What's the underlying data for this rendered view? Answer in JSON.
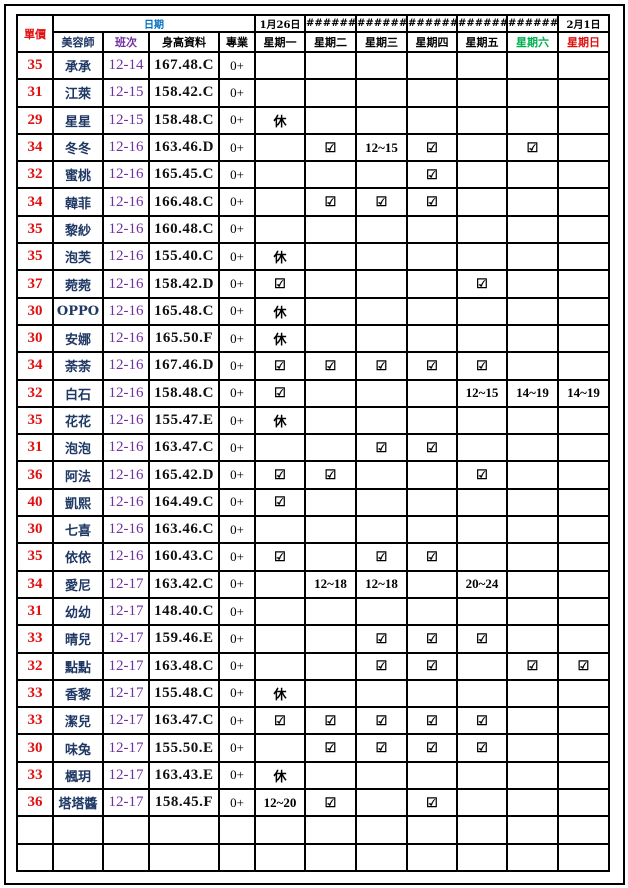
{
  "header": {
    "price_label": "單價",
    "date_label": "日期",
    "columns": [
      "美容師",
      "班次",
      "身高資料",
      "專業"
    ],
    "dates": [
      "1月26日",
      "######",
      "######",
      "######",
      "######",
      "######",
      "2月1日"
    ],
    "weekdays": [
      "星期一",
      "星期二",
      "星期三",
      "星期四",
      "星期五",
      "星期六",
      "星期日"
    ]
  },
  "colors": {
    "price": "#e01010",
    "date_label": "#0070c0",
    "shift": "#7030a0",
    "saturday": "#00b050",
    "sunday": "#e01010",
    "name": "#1f3864"
  },
  "rows": [
    {
      "price": "35",
      "name": "承承",
      "shift": "12-14",
      "height": "167.48.C",
      "pro": "0+",
      "schedule": [
        "",
        "",
        "",
        "",
        "",
        "",
        ""
      ]
    },
    {
      "price": "31",
      "name": "江萊",
      "shift": "12-15",
      "height": "158.42.C",
      "pro": "0+",
      "schedule": [
        "",
        "",
        "",
        "",
        "",
        "",
        ""
      ]
    },
    {
      "price": "29",
      "name": "星星",
      "shift": "12-15",
      "height": "158.48.C",
      "pro": "0+",
      "schedule": [
        "休",
        "",
        "",
        "",
        "",
        "",
        ""
      ]
    },
    {
      "price": "34",
      "name": "冬冬",
      "shift": "12-16",
      "height": "163.46.D",
      "pro": "0+",
      "schedule": [
        "",
        "☑",
        "12~15",
        "☑",
        "",
        "☑",
        ""
      ]
    },
    {
      "price": "32",
      "name": "蜜桃",
      "shift": "12-16",
      "height": "165.45.C",
      "pro": "0+",
      "schedule": [
        "",
        "",
        "",
        "☑",
        "",
        "",
        ""
      ]
    },
    {
      "price": "34",
      "name": "韓菲",
      "shift": "12-16",
      "height": "166.48.C",
      "pro": "0+",
      "schedule": [
        "",
        "☑",
        "☑",
        "☑",
        "",
        "",
        ""
      ]
    },
    {
      "price": "35",
      "name": "黎紗",
      "shift": "12-16",
      "height": "160.48.C",
      "pro": "0+",
      "schedule": [
        "",
        "",
        "",
        "",
        "",
        "",
        ""
      ]
    },
    {
      "price": "35",
      "name": "泡芙",
      "shift": "12-16",
      "height": "155.40.C",
      "pro": "0+",
      "schedule": [
        "休",
        "",
        "",
        "",
        "",
        "",
        ""
      ]
    },
    {
      "price": "37",
      "name": "菀菀",
      "shift": "12-16",
      "height": "158.42.D",
      "pro": "0+",
      "schedule": [
        "☑",
        "",
        "",
        "",
        "☑",
        "",
        ""
      ]
    },
    {
      "price": "30",
      "name": "OPPO",
      "shift": "12-16",
      "height": "165.48.C",
      "pro": "0+",
      "schedule": [
        "休",
        "",
        "",
        "",
        "",
        "",
        ""
      ]
    },
    {
      "price": "30",
      "name": "安娜",
      "shift": "12-16",
      "height": "165.50.F",
      "pro": "0+",
      "schedule": [
        "休",
        "",
        "",
        "",
        "",
        "",
        ""
      ]
    },
    {
      "price": "34",
      "name": "荼荼",
      "shift": "12-16",
      "height": "167.46.D",
      "pro": "0+",
      "schedule": [
        "☑",
        "☑",
        "☑",
        "☑",
        "☑",
        "",
        ""
      ]
    },
    {
      "price": "32",
      "name": "白石",
      "shift": "12-16",
      "height": "158.48.C",
      "pro": "0+",
      "schedule": [
        "☑",
        "",
        "",
        "",
        "12~15",
        "14~19",
        "14~19"
      ]
    },
    {
      "price": "35",
      "name": "花花",
      "shift": "12-16",
      "height": "155.47.E",
      "pro": "0+",
      "schedule": [
        "休",
        "",
        "",
        "",
        "",
        "",
        ""
      ]
    },
    {
      "price": "31",
      "name": "泡泡",
      "shift": "12-16",
      "height": "163.47.C",
      "pro": "0+",
      "schedule": [
        "",
        "",
        "☑",
        "☑",
        "",
        "",
        ""
      ]
    },
    {
      "price": "36",
      "name": "阿法",
      "shift": "12-16",
      "height": "165.42.D",
      "pro": "0+",
      "schedule": [
        "☑",
        "☑",
        "",
        "",
        "☑",
        "",
        ""
      ]
    },
    {
      "price": "40",
      "name": "凱熙",
      "shift": "12-16",
      "height": "164.49.C",
      "pro": "0+",
      "schedule": [
        "☑",
        "",
        "",
        "",
        "",
        "",
        ""
      ]
    },
    {
      "price": "30",
      "name": "七喜",
      "shift": "12-16",
      "height": "163.46.C",
      "pro": "0+",
      "schedule": [
        "",
        "",
        "",
        "",
        "",
        "",
        ""
      ]
    },
    {
      "price": "35",
      "name": "依依",
      "shift": "12-16",
      "height": "160.43.C",
      "pro": "0+",
      "schedule": [
        "☑",
        "",
        "☑",
        "☑",
        "",
        "",
        ""
      ]
    },
    {
      "price": "34",
      "name": "愛尼",
      "shift": "12-17",
      "height": "163.42.C",
      "pro": "0+",
      "schedule": [
        "",
        "12~18",
        "12~18",
        "",
        "20~24",
        "",
        ""
      ]
    },
    {
      "price": "31",
      "name": "幼幼",
      "shift": "12-17",
      "height": "148.40.C",
      "pro": "0+",
      "schedule": [
        "",
        "",
        "",
        "",
        "",
        "",
        ""
      ]
    },
    {
      "price": "33",
      "name": "晴兒",
      "shift": "12-17",
      "height": "159.46.E",
      "pro": "0+",
      "schedule": [
        "",
        "",
        "☑",
        "☑",
        "☑",
        "",
        ""
      ]
    },
    {
      "price": "32",
      "name": "點點",
      "shift": "12-17",
      "height": "163.48.C",
      "pro": "0+",
      "schedule": [
        "",
        "",
        "☑",
        "☑",
        "",
        "☑",
        "☑"
      ]
    },
    {
      "price": "33",
      "name": "香黎",
      "shift": "12-17",
      "height": "155.48.C",
      "pro": "0+",
      "schedule": [
        "休",
        "",
        "",
        "",
        "",
        "",
        ""
      ]
    },
    {
      "price": "33",
      "name": "潔兒",
      "shift": "12-17",
      "height": "163.47.C",
      "pro": "0+",
      "schedule": [
        "☑",
        "☑",
        "☑",
        "☑",
        "☑",
        "",
        ""
      ]
    },
    {
      "price": "30",
      "name": "味兔",
      "shift": "12-17",
      "height": "155.50.E",
      "pro": "0+",
      "schedule": [
        "",
        "☑",
        "☑",
        "☑",
        "☑",
        "",
        ""
      ]
    },
    {
      "price": "33",
      "name": "楓玥",
      "shift": "12-17",
      "height": "163.43.E",
      "pro": "0+",
      "schedule": [
        "休",
        "",
        "",
        "",
        "",
        "",
        ""
      ]
    },
    {
      "price": "36",
      "name": "塔塔醬",
      "shift": "12-17",
      "height": "158.45.F",
      "pro": "0+",
      "schedule": [
        "12~20",
        "☑",
        "",
        "☑",
        "",
        "",
        ""
      ]
    },
    {
      "price": "",
      "name": "",
      "shift": "",
      "height": "",
      "pro": "",
      "schedule": [
        "",
        "",
        "",
        "",
        "",
        "",
        ""
      ]
    },
    {
      "price": "",
      "name": "",
      "shift": "",
      "height": "",
      "pro": "",
      "schedule": [
        "",
        "",
        "",
        "",
        "",
        "",
        ""
      ]
    }
  ]
}
